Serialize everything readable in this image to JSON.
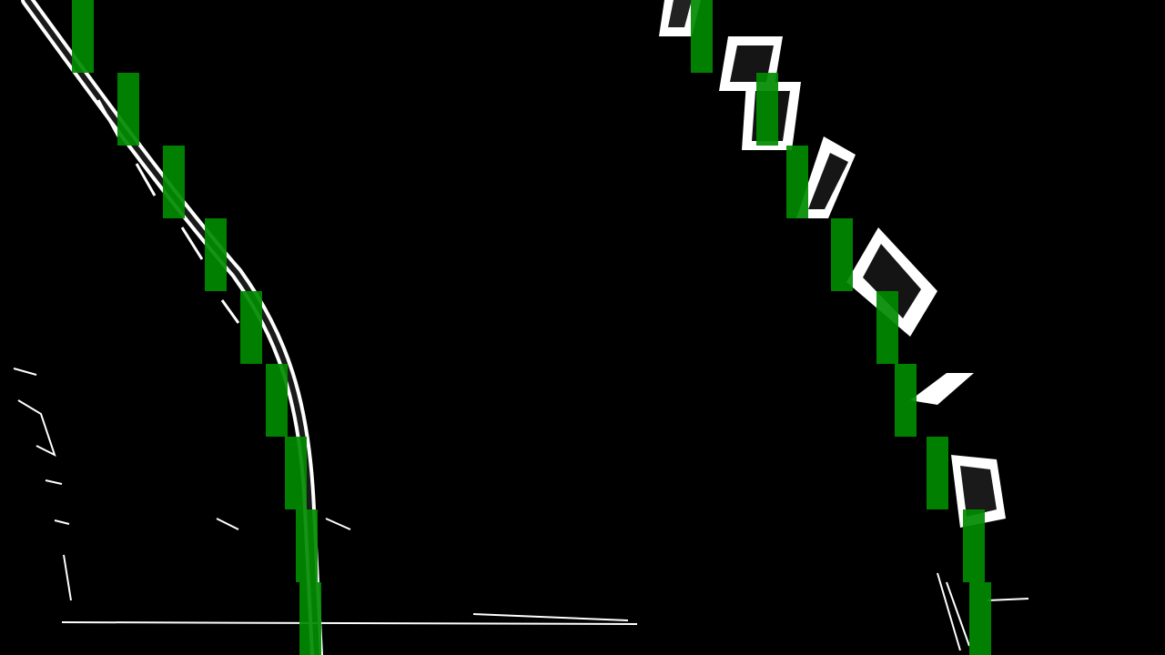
{
  "colors": {
    "background": "#000000",
    "lane_pixels": "#ffffff",
    "window": "#008a00",
    "window_bright": "#3cff3c"
  },
  "windows_per_lane": 9,
  "left_lane": {
    "window_centers_x": [
      91,
      141,
      191,
      237,
      276,
      304,
      325,
      337,
      341
    ]
  },
  "right_lane": {
    "window_centers_x": [
      771,
      843,
      876,
      925,
      975,
      995,
      1030,
      1070,
      1077
    ]
  }
}
